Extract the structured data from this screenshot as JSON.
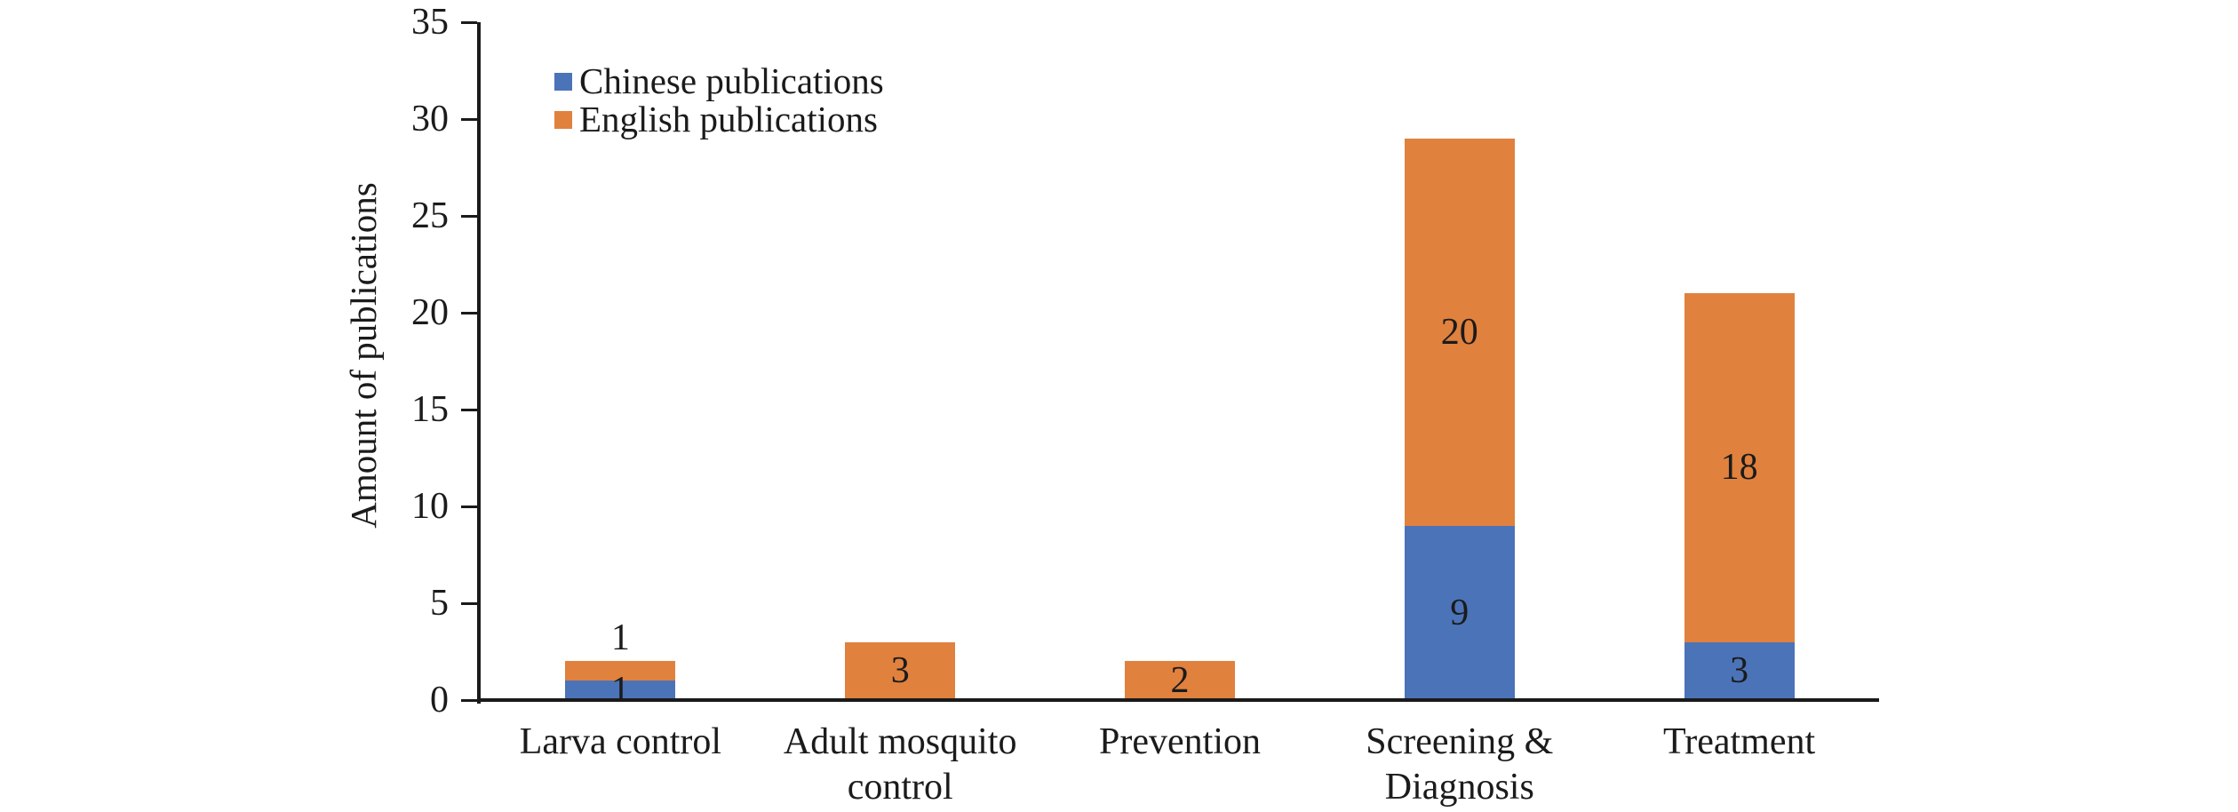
{
  "figure": {
    "background": "#ffffff"
  },
  "chart_data": {
    "type": "bar",
    "stacked": true,
    "title": "",
    "xlabel": "",
    "ylabel": "Amount of publications",
    "ylim": [
      0,
      35
    ],
    "yticks": [
      0,
      5,
      10,
      15,
      20,
      25,
      30,
      35
    ],
    "grid": false,
    "legend_position": "inside-top-left",
    "categories": [
      "Larva control",
      "Adult mosquito control",
      "Prevention",
      "Screening & Diagnosis",
      "Treatment"
    ],
    "category_label_lines": [
      [
        "Larva control"
      ],
      [
        "Adult mosquito",
        "control"
      ],
      [
        "Prevention"
      ],
      [
        "Screening &",
        "Diagnosis"
      ],
      [
        "Treatment"
      ]
    ],
    "series": [
      {
        "name": "Chinese publications",
        "color": "#4B73B8",
        "values": [
          1,
          0,
          0,
          9,
          3
        ],
        "data_labels": [
          "1",
          "",
          "",
          "9",
          "3"
        ],
        "label_placements": [
          "center",
          "",
          "",
          "center",
          "center"
        ]
      },
      {
        "name": "English publications",
        "color": "#E0813E",
        "values": [
          1,
          3,
          2,
          20,
          18
        ],
        "data_labels": [
          "1",
          "3",
          "2",
          "20",
          "18"
        ],
        "label_placements": [
          "above",
          "center",
          "center",
          "center",
          "center"
        ]
      }
    ],
    "colors": {
      "axis": "#1a1a1a",
      "text": "#1b1b1b"
    }
  }
}
